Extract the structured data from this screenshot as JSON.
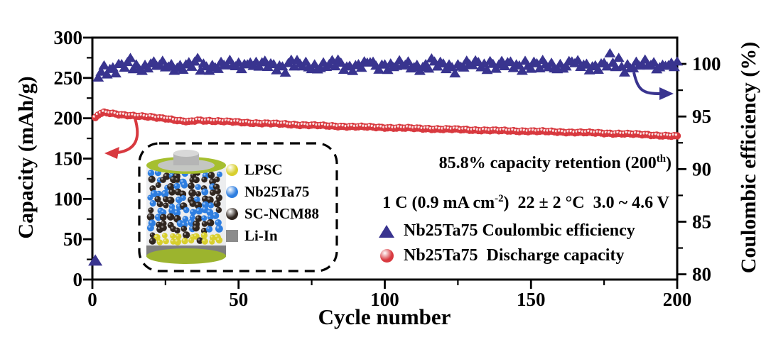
{
  "window": {
    "background": "#ffffff"
  },
  "annotations": {
    "retention_prefix": "85.8% capacity retention (200",
    "retention_sup": "th",
    "retention_suffix": ")",
    "conditions_prefix": "1 C (0.9 mA cm",
    "conditions_sup": "-2",
    "conditions_suffix": ")  22 ± 2 °C  3.0 ~ 4.6 V"
  },
  "legend": {
    "items": [
      {
        "label": "Nb25Ta75 Coulombic efficiency",
        "marker": "triangle",
        "color": "#39348f"
      },
      {
        "label": "Nb25Ta75  Discharge capacity",
        "marker": "sphere",
        "color": "#d8393f"
      }
    ]
  },
  "inset": {
    "items": [
      {
        "label": "LPSC",
        "shape": "ball",
        "color": "#d8cf2e"
      },
      {
        "label": "Nb25Ta75",
        "shape": "ball",
        "color": "#2e7ee0"
      },
      {
        "label": "SC-NCM88",
        "shape": "ball",
        "color": "#302620"
      },
      {
        "label": "Li-In",
        "shape": "square",
        "color": "#8c8c8c"
      }
    ],
    "battery": {
      "rim_color": "#a6bf2f",
      "cap_color": "#b5b5b5",
      "glass_color": "rgba(185,192,198,0.28)",
      "band_color": "#787878"
    }
  },
  "chart_data": {
    "type": "scatter",
    "title": "",
    "xlabel": "Cycle number",
    "ylabel_left": "Capacity (mAh/g)",
    "ylabel_right": "Coulombic efficiency (%)",
    "xlim": [
      0,
      200
    ],
    "ylim_left": [
      0,
      300
    ],
    "ylim_right": [
      79.5,
      102.5
    ],
    "x_major_ticks": [
      0,
      50,
      100,
      150,
      200
    ],
    "x_minor_ticks": [
      25,
      75,
      125,
      175
    ],
    "y_left_major_ticks": [
      0,
      50,
      100,
      150,
      200,
      250,
      300
    ],
    "y_left_minor_ticks": [
      25,
      75,
      125,
      175,
      225,
      275
    ],
    "y_right_major_ticks": [
      80,
      85,
      90,
      95,
      100
    ],
    "y_right_minor_ticks": [
      82.5,
      87.5,
      92.5,
      97.5
    ],
    "grid": false,
    "series": [
      {
        "name": "Nb25Ta75 Coulombic efficiency",
        "axis": "right",
        "marker": "triangle",
        "color": "#39348f",
        "anchors_x": [
          1,
          2,
          3,
          5,
          8,
          15,
          30,
          60,
          100,
          150,
          200
        ],
        "anchors_y": [
          81.3,
          99.0,
          99.3,
          99.55,
          99.7,
          99.8,
          99.85,
          99.9,
          99.85,
          99.9,
          99.9
        ]
      },
      {
        "name": "Nb25Ta75 Discharge capacity",
        "axis": "left",
        "marker": "sphere",
        "color": "#d8393f",
        "anchors_x": [
          1,
          2,
          3,
          4,
          6,
          10,
          15,
          20,
          25,
          30,
          33,
          36,
          40,
          45,
          50,
          60,
          70,
          80,
          90,
          100,
          110,
          120,
          130,
          140,
          150,
          160,
          170,
          180,
          190,
          200
        ],
        "anchors_y": [
          200,
          204,
          206,
          207,
          206.5,
          204.5,
          202.5,
          201.5,
          200,
          196.5,
          195.5,
          197.5,
          197,
          196,
          195,
          193.5,
          192,
          190.5,
          189.5,
          188.5,
          187.5,
          186.5,
          185.5,
          184.5,
          184,
          183,
          182,
          181,
          179.5,
          177.6
        ]
      }
    ]
  }
}
